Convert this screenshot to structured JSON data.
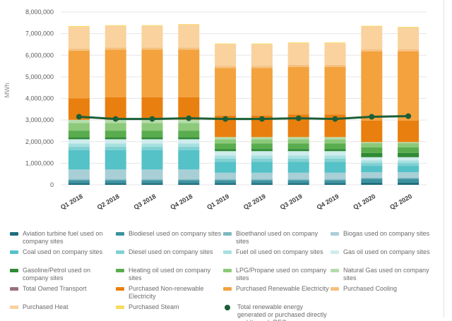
{
  "chart_data": {
    "type": "bar",
    "stacked": true,
    "ylabel": "MWh",
    "ylim": [
      0,
      8000000
    ],
    "yticks": [
      "0",
      "1,000,000",
      "2,000,000",
      "3,000,000",
      "4,000,000",
      "5,000,000",
      "6,000,000",
      "7,000,000",
      "8,000,000"
    ],
    "categories": [
      "Q1 2018",
      "Q2 2018",
      "Q3 2018",
      "Q4 2018",
      "Q1 2019",
      "Q2 2019",
      "Q3 2019",
      "Q4 2019",
      "Q1 2020",
      "Q2 2020"
    ],
    "grid": true,
    "legend_position": "bottom",
    "series": [
      {
        "name": "Aviation turbine fuel used on company sites",
        "color": "#1f6e7e",
        "values": [
          90000,
          90000,
          90000,
          90000,
          90000,
          90000,
          90000,
          90000,
          100000,
          100000
        ]
      },
      {
        "name": "Biodiesel used on company sites",
        "color": "#3c93a0",
        "values": [
          120000,
          120000,
          120000,
          120000,
          120000,
          120000,
          120000,
          120000,
          180000,
          180000
        ]
      },
      {
        "name": "Bioethanol used on company sites",
        "color": "#7fb8c2",
        "values": [
          50000,
          50000,
          50000,
          50000,
          50000,
          50000,
          50000,
          50000,
          50000,
          50000
        ]
      },
      {
        "name": "Biogas used on company sites",
        "color": "#a9cfd6",
        "values": [
          450000,
          450000,
          450000,
          450000,
          300000,
          300000,
          300000,
          300000,
          250000,
          250000
        ]
      },
      {
        "name": "Coal used on company sites",
        "color": "#55c2c8",
        "values": [
          900000,
          900000,
          900000,
          900000,
          500000,
          500000,
          500000,
          500000,
          300000,
          300000
        ]
      },
      {
        "name": "Diesel used on company sites",
        "color": "#80d0d2",
        "values": [
          150000,
          150000,
          150000,
          150000,
          150000,
          150000,
          150000,
          150000,
          130000,
          130000
        ]
      },
      {
        "name": "Fuel oil used on company sites",
        "color": "#a8e0e0",
        "values": [
          150000,
          150000,
          150000,
          150000,
          150000,
          150000,
          150000,
          150000,
          120000,
          120000
        ]
      },
      {
        "name": "Gas oil used on company sites",
        "color": "#cfecec",
        "values": [
          200000,
          200000,
          200000,
          200000,
          200000,
          200000,
          200000,
          200000,
          150000,
          150000
        ]
      },
      {
        "name": "Gasoline/Petrol used on company sites",
        "color": "#2e8a33",
        "values": [
          100000,
          100000,
          100000,
          100000,
          100000,
          100000,
          100000,
          100000,
          200000,
          200000
        ]
      },
      {
        "name": "Heating oil used on company sites",
        "color": "#5aad4e",
        "values": [
          300000,
          300000,
          300000,
          300000,
          250000,
          250000,
          250000,
          250000,
          250000,
          250000
        ]
      },
      {
        "name": "LPG/Propane used on company sites",
        "color": "#8cc97a",
        "values": [
          350000,
          350000,
          350000,
          350000,
          200000,
          200000,
          200000,
          200000,
          200000,
          200000
        ]
      },
      {
        "name": "Natural Gas used on company sites",
        "color": "#b5dcab",
        "values": [
          150000,
          150000,
          150000,
          150000,
          100000,
          100000,
          100000,
          100000,
          50000,
          50000
        ]
      },
      {
        "name": "Total Owned Transport",
        "color": "#9b6f7f",
        "values": [
          0,
          0,
          0,
          0,
          0,
          0,
          0,
          0,
          0,
          0
        ]
      },
      {
        "name": "Purchased Non-renewable Electricity",
        "color": "#e97f0e",
        "values": [
          1000000,
          1050000,
          1050000,
          1050000,
          1000000,
          1000000,
          1050000,
          1050000,
          1000000,
          1000000
        ]
      },
      {
        "name": "Purchased Renewable Electricity",
        "color": "#f3a23d",
        "values": [
          2200000,
          2200000,
          2200000,
          2200000,
          2200000,
          2200000,
          2200000,
          2200000,
          3200000,
          3200000
        ]
      },
      {
        "name": "Purchased Cooling",
        "color": "#f5c07e",
        "values": [
          100000,
          100000,
          100000,
          100000,
          100000,
          100000,
          100000,
          100000,
          100000,
          100000
        ]
      },
      {
        "name": "Purchased Heat",
        "color": "#f9d29e",
        "values": [
          1000000,
          1000000,
          1000000,
          1050000,
          1000000,
          1000000,
          1000000,
          1000000,
          1050000,
          1000000
        ]
      },
      {
        "name": "Purchased Steam",
        "color": "#f7dc5e",
        "values": [
          40000,
          30000,
          30000,
          30000,
          30000,
          30000,
          30000,
          30000,
          30000,
          30000
        ]
      }
    ],
    "line_series": {
      "name": "Total renewable energy generated or purchased directly and through RECs",
      "color": "#1b5e36",
      "values": [
        3150000,
        3050000,
        3050000,
        3080000,
        3050000,
        3050000,
        3080000,
        3050000,
        3150000,
        3180000
      ]
    }
  }
}
